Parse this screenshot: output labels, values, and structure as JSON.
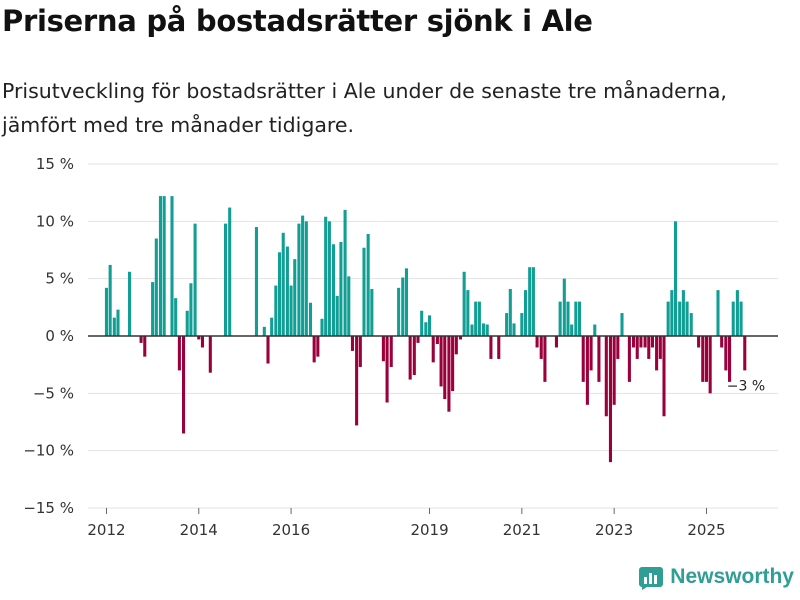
{
  "title": "Priserna på bostadsrätter sjönk i Ale",
  "subtitle": "Prisutveckling för bostadsrätter i Ale under de senaste tre månaderna, jämfört med tre månader tidigare.",
  "brand": {
    "name": "Newsworthy",
    "icon": "bar-chart-logo-icon",
    "color": "#2f9e94"
  },
  "colors": {
    "positive": "#119e94",
    "negative": "#99003c",
    "grid": "#e2e2e2",
    "zero": "#333333",
    "text": "#333333"
  },
  "chart_data": {
    "type": "bar",
    "ylabel": "",
    "xlabel": "",
    "ylim": [
      -15,
      15
    ],
    "yticks": [
      -15,
      -10,
      -5,
      0,
      5,
      10,
      15
    ],
    "ytick_labels": [
      "−15 %",
      "−10 %",
      "−5 %",
      "0 %",
      "5 %",
      "10 %",
      "15 %"
    ],
    "xlim": [
      2011.6,
      2026.55
    ],
    "xticks": [
      2012,
      2014,
      2016,
      2019,
      2021,
      2023,
      2025
    ],
    "xtick_labels": [
      "2012",
      "2014",
      "2016",
      "2019",
      "2021",
      "2023",
      "2025"
    ],
    "last_label": "−3 %",
    "series": [
      {
        "name": "Prisutveckling",
        "x": [
          2012.0,
          2012.08,
          2012.17,
          2012.25,
          2012.5,
          2012.75,
          2012.83,
          2013.0,
          2013.08,
          2013.17,
          2013.25,
          2013.42,
          2013.5,
          2013.58,
          2013.67,
          2013.75,
          2013.83,
          2013.92,
          2014.0,
          2014.08,
          2014.25,
          2014.58,
          2014.67,
          2015.25,
          2015.42,
          2015.5,
          2015.58,
          2015.67,
          2015.75,
          2015.83,
          2015.92,
          2016.0,
          2016.08,
          2016.17,
          2016.25,
          2016.33,
          2016.42,
          2016.5,
          2016.58,
          2016.67,
          2016.75,
          2016.83,
          2016.92,
          2017.0,
          2017.08,
          2017.17,
          2017.25,
          2017.33,
          2017.42,
          2017.5,
          2017.58,
          2017.67,
          2017.75,
          2018.0,
          2018.08,
          2018.17,
          2018.33,
          2018.42,
          2018.5,
          2018.58,
          2018.67,
          2018.75,
          2018.83,
          2018.92,
          2019.0,
          2019.08,
          2019.17,
          2019.25,
          2019.33,
          2019.42,
          2019.5,
          2019.58,
          2019.67,
          2019.75,
          2019.83,
          2019.92,
          2020.0,
          2020.08,
          2020.17,
          2020.25,
          2020.33,
          2020.5,
          2020.67,
          2020.75,
          2020.83,
          2021.0,
          2021.08,
          2021.17,
          2021.25,
          2021.33,
          2021.42,
          2021.5,
          2021.75,
          2021.83,
          2021.92,
          2022.0,
          2022.08,
          2022.17,
          2022.25,
          2022.33,
          2022.42,
          2022.5,
          2022.58,
          2022.67,
          2022.83,
          2022.92,
          2023.0,
          2023.08,
          2023.17,
          2023.33,
          2023.42,
          2023.5,
          2023.58,
          2023.67,
          2023.75,
          2023.83,
          2023.92,
          2024.0,
          2024.08,
          2024.17,
          2024.25,
          2024.33,
          2024.42,
          2024.5,
          2024.58,
          2024.67,
          2024.83,
          2024.92,
          2025.0,
          2025.08,
          2025.25,
          2025.33,
          2025.42,
          2025.5,
          2025.58,
          2025.67,
          2025.75,
          2025.83
        ],
        "values": [
          4.2,
          6.2,
          1.6,
          2.3,
          5.6,
          -0.6,
          -1.8,
          4.7,
          8.5,
          12.2,
          12.2,
          12.2,
          3.3,
          -3.0,
          -8.5,
          2.2,
          4.6,
          9.8,
          -0.3,
          -1.0,
          -3.2,
          9.8,
          11.2,
          9.5,
          0.8,
          -2.4,
          1.6,
          4.4,
          7.3,
          9.0,
          7.8,
          4.4,
          6.7,
          9.8,
          10.5,
          10.0,
          2.9,
          -2.3,
          -1.8,
          1.5,
          10.4,
          10.0,
          8.0,
          3.5,
          8.2,
          11.0,
          5.2,
          -1.3,
          -7.8,
          -2.7,
          7.7,
          8.9,
          4.1,
          -2.2,
          -5.8,
          -2.7,
          4.2,
          5.1,
          5.9,
          -3.8,
          -3.4,
          -0.6,
          2.2,
          1.2,
          1.8,
          -2.3,
          -0.7,
          -4.4,
          -5.5,
          -6.6,
          -4.8,
          -1.6,
          -0.3,
          5.6,
          4.0,
          1.0,
          3.0,
          3.0,
          1.1,
          1.0,
          -2.0,
          -2.0,
          2.0,
          4.1,
          1.1,
          2.0,
          4.0,
          6.0,
          6.0,
          -1.0,
          -2.0,
          -4.0,
          -1.0,
          3.0,
          5.0,
          3.0,
          1.0,
          3.0,
          3.0,
          -4.0,
          -6.0,
          -3.0,
          1.0,
          -4.0,
          -7.0,
          -11.0,
          -6.0,
          -2.0,
          2.0,
          -4.0,
          -1.0,
          -2.0,
          -1.0,
          -1.0,
          -2.0,
          -1.0,
          -3.0,
          -2.0,
          -7.0,
          3.0,
          4.0,
          10.0,
          3.0,
          4.0,
          3.0,
          2.0,
          -1.0,
          -4.0,
          -4.0,
          -5.0,
          4.0,
          -1.0,
          -3.0,
          -4.0,
          3.0,
          4.0,
          3.0,
          -3.0
        ]
      }
    ]
  }
}
